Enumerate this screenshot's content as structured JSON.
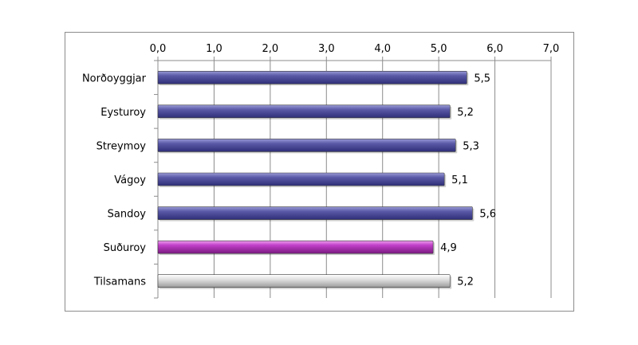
{
  "chart_data": {
    "type": "bar",
    "orientation": "horizontal",
    "categories": [
      "Norðoyggjar",
      "Eysturoy",
      "Streymoy",
      "Vágoy",
      "Sandoy",
      "Suðuroy",
      "Tilsamans"
    ],
    "values": [
      5.5,
      5.2,
      5.3,
      5.1,
      5.6,
      4.9,
      5.2
    ],
    "value_labels": [
      "5,5",
      "5,2",
      "5,3",
      "5,1",
      "5,6",
      "4,9",
      "5,2"
    ],
    "xlim": [
      0,
      7
    ],
    "x_ticks": [
      0,
      1,
      2,
      3,
      4,
      5,
      6,
      7
    ],
    "x_tick_labels": [
      "0,0",
      "1,0",
      "2,0",
      "3,0",
      "4,0",
      "5,0",
      "6,0",
      "7,0"
    ],
    "axis_position": "top",
    "grid": true,
    "legend": "none",
    "bar_colors": [
      "#5a5aa8",
      "#5a5aa8",
      "#5a5aa8",
      "#5a5aa8",
      "#5a5aa8",
      "#c040c8",
      "#d4d4d4"
    ]
  }
}
